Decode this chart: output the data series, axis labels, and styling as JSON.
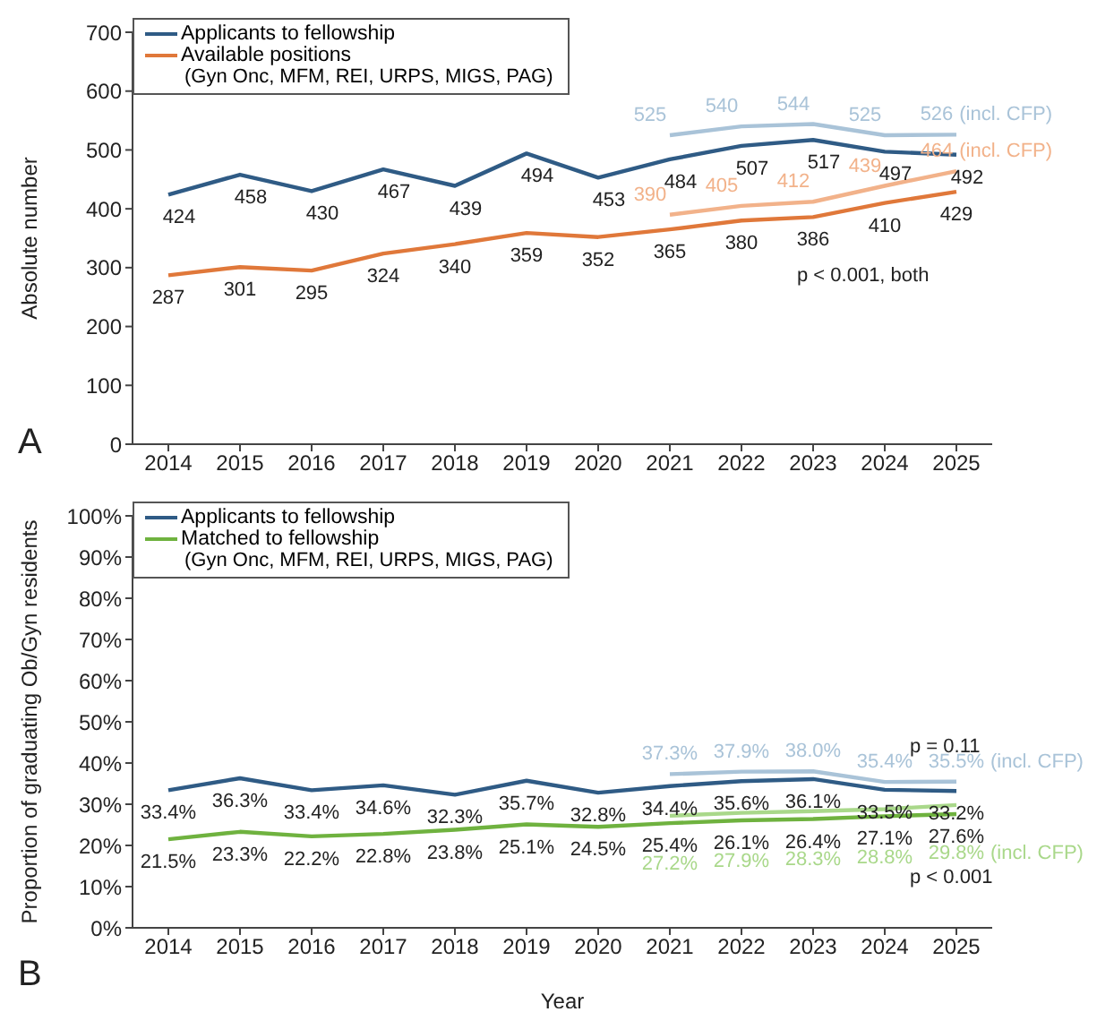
{
  "chart_data": [
    {
      "type": "line",
      "ylabel": "Absolute number",
      "categories": [
        "2014",
        "2015",
        "2016",
        "2017",
        "2018",
        "2019",
        "2020",
        "2021",
        "2022",
        "2023",
        "2024",
        "2025"
      ],
      "series": [
        {
          "name": "Applicants to fellowship",
          "color": "#2f5b85",
          "values": [
            424,
            458,
            430,
            467,
            439,
            494,
            453,
            484,
            507,
            517,
            497,
            492
          ]
        },
        {
          "name": "Available positions\n(Gyn Onc, MFM, REI, URPS, MIGS, PAG)",
          "color": "#e0783a",
          "values": [
            287,
            301,
            295,
            324,
            340,
            359,
            352,
            365,
            380,
            386,
            410,
            429
          ]
        },
        {
          "color": "#a9c3d8",
          "values": [
            null,
            null,
            null,
            null,
            null,
            null,
            null,
            525,
            540,
            544,
            525,
            526
          ]
        },
        {
          "color": "#f2b28a",
          "values": [
            null,
            null,
            null,
            null,
            null,
            null,
            null,
            390,
            405,
            412,
            439,
            464
          ]
        }
      ],
      "ylim": [
        0,
        700
      ],
      "yticks": [
        0,
        100,
        200,
        300,
        400,
        500,
        600,
        700
      ],
      "grid": false,
      "legend": "top left",
      "data_labels": true,
      "marker": "none",
      "line_style": "solid",
      "annotations": [
        "A",
        "p < 0.001, both",
        {
          "text": "(incl. CFP)",
          "x": "2025",
          "y": 526
        },
        {
          "text": "(incl. CFP)",
          "x": "2025",
          "y": 464
        }
      ]
    },
    {
      "type": "line",
      "xlabel": "Year",
      "ylabel": "Proportion of graduating Ob/Gyn residents",
      "categories": [
        "2014",
        "2015",
        "2016",
        "2017",
        "2018",
        "2019",
        "2020",
        "2021",
        "2022",
        "2023",
        "2024",
        "2025"
      ],
      "series": [
        {
          "name": "Applicants to fellowship",
          "color": "#2f5b85",
          "values": [
            33.4,
            36.3,
            33.4,
            34.6,
            32.3,
            35.7,
            32.8,
            34.4,
            35.6,
            36.1,
            33.5,
            33.2
          ],
          "value_labels": [
            "33.4%",
            "36.3%",
            "33.4%",
            "34.6%",
            "32.3%",
            "35.7%",
            "32.8%",
            "34.4%",
            "35.6%",
            "36.1%",
            "33.5%",
            "33.2%"
          ]
        },
        {
          "name": "Matched to fellowship\n(Gyn Onc, MFM, REI, URPS, MIGS, PAG)",
          "color": "#6fb23f",
          "values": [
            21.5,
            23.3,
            22.2,
            22.8,
            23.8,
            25.1,
            24.5,
            25.4,
            26.1,
            26.4,
            27.1,
            27.6
          ],
          "value_labels": [
            "21.5%",
            "23.3%",
            "22.2%",
            "22.8%",
            "23.8%",
            "25.1%",
            "24.5%",
            "25.4%",
            "26.1%",
            "26.4%",
            "27.1%",
            "27.6%"
          ]
        },
        {
          "color": "#a9c3d8",
          "values": [
            null,
            null,
            null,
            null,
            null,
            null,
            null,
            37.3,
            37.9,
            38.0,
            35.4,
            35.5
          ],
          "value_labels": [
            null,
            null,
            null,
            null,
            null,
            null,
            null,
            "37.3%",
            "37.9%",
            "38.0%",
            "35.4%",
            "35.5%"
          ]
        },
        {
          "color": "#a9d88a",
          "values": [
            null,
            null,
            null,
            null,
            null,
            null,
            null,
            27.2,
            27.9,
            28.3,
            28.8,
            29.8
          ],
          "value_labels": [
            null,
            null,
            null,
            null,
            null,
            null,
            null,
            "27.2%",
            "27.9%",
            "28.3%",
            "28.8%",
            "29.8%"
          ]
        }
      ],
      "ylim": [
        0,
        100
      ],
      "yticks": [
        {
          "value": 0,
          "label": "0%"
        },
        {
          "value": 10,
          "label": "10%"
        },
        {
          "value": 20,
          "label": "20%"
        },
        {
          "value": 30,
          "label": "30%"
        },
        {
          "value": 40,
          "label": "40%"
        },
        {
          "value": 50,
          "label": "50%"
        },
        {
          "value": 60,
          "label": "60%"
        },
        {
          "value": 70,
          "label": "70%"
        },
        {
          "value": 80,
          "label": "80%"
        },
        {
          "value": 90,
          "label": "90%"
        },
        {
          "value": 100,
          "label": "100%"
        }
      ],
      "grid": false,
      "legend": "top left",
      "marker": "none",
      "line_style": "solid",
      "annotations": [
        "B",
        "p = 0.11",
        "p < 0.001",
        {
          "text": "(incl. CFP)",
          "x": "2025",
          "y": 35.5
        },
        {
          "text": "(incl. CFP)",
          "x": "2025",
          "y": 29.8
        }
      ]
    }
  ]
}
